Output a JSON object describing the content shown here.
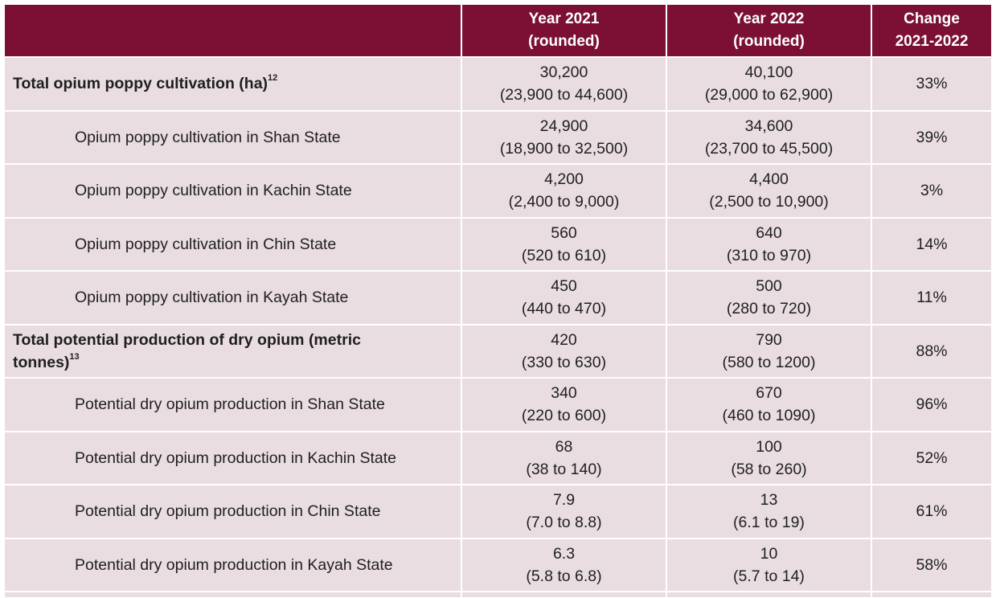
{
  "table": {
    "headers": [
      {
        "line1": "",
        "line2": ""
      },
      {
        "line1": "Year 2021",
        "line2": "(rounded)"
      },
      {
        "line1": "Year 2022",
        "line2": "(rounded)"
      },
      {
        "line1": "Change",
        "line2": "2021-2022"
      }
    ],
    "rows": [
      {
        "label": "Total opium poppy cultivation (ha)",
        "footnote": "12",
        "y2021": "30,200",
        "y2021_range": "(23,900 to 44,600)",
        "y2022": "40,100",
        "y2022_range": "(29,000 to 62,900)",
        "change": "33%"
      },
      {
        "label": "Opium poppy cultivation in Shan State",
        "footnote": "",
        "y2021": "24,900",
        "y2021_range": "(18,900 to 32,500)",
        "y2022": "34,600",
        "y2022_range": "(23,700 to 45,500)",
        "change": "39%"
      },
      {
        "label": "Opium poppy cultivation in Kachin State",
        "footnote": "",
        "y2021": "4,200",
        "y2021_range": "(2,400 to 9,000)",
        "y2022": "4,400",
        "y2022_range": "(2,500 to 10,900)",
        "change": "3%"
      },
      {
        "label": "Opium poppy cultivation in Chin State",
        "footnote": "",
        "y2021": "560",
        "y2021_range": "(520 to 610)",
        "y2022": "640",
        "y2022_range": "(310 to 970)",
        "change": "14%"
      },
      {
        "label": "Opium poppy cultivation in Kayah State",
        "footnote": "",
        "y2021": "450",
        "y2021_range": "(440 to 470)",
        "y2022": "500",
        "y2022_range": "(280 to 720)",
        "change": "11%"
      },
      {
        "label": "Total potential production of dry opium (metric tonnes)",
        "footnote": "13",
        "y2021": "420",
        "y2021_range": "(330 to 630)",
        "y2022": "790",
        "y2022_range": "(580 to 1200)",
        "change": "88%"
      },
      {
        "label": "Potential dry opium production in Shan State",
        "footnote": "",
        "y2021": "340",
        "y2021_range": "(220 to 600)",
        "y2022": "670",
        "y2022_range": "(460 to 1090)",
        "change": "96%"
      },
      {
        "label": "Potential dry opium production in Kachin State",
        "footnote": "",
        "y2021": "68",
        "y2021_range": "(38 to 140)",
        "y2022": "100",
        "y2022_range": "(58 to 260)",
        "change": "52%"
      },
      {
        "label": "Potential dry opium production in Chin State",
        "footnote": "",
        "y2021": "7.9",
        "y2021_range": "(7.0 to 8.8)",
        "y2022": "13",
        "y2022_range": "(6.1 to 19)",
        "change": "61%"
      },
      {
        "label": "Potential dry opium production in Kayah State",
        "footnote": "",
        "y2021": "6.3",
        "y2021_range": "(5.8 to 6.8)",
        "y2022": "10",
        "y2022_range": "(5.7 to 14)",
        "change": "58%"
      }
    ]
  },
  "colors": {
    "header_bg": "#7b1034",
    "row_bg": "#e9dde1",
    "header_text": "#ffffff"
  }
}
